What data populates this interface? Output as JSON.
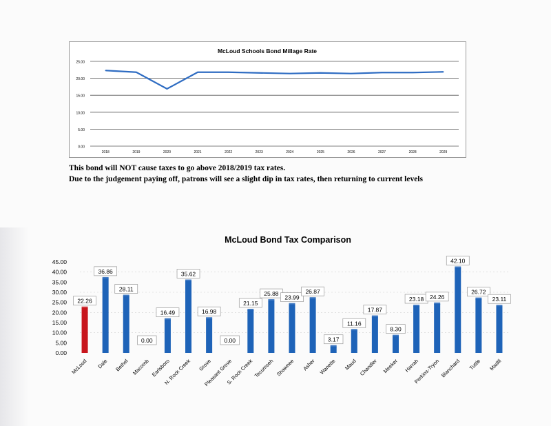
{
  "charts": [
    {
      "title": "McLoud Schools Bond Millage Rate",
      "chart_data": {
        "type": "line",
        "title": "McLoud Schools Bond Millage Rate",
        "x": [
          "2018",
          "2019",
          "2020",
          "2021",
          "2022",
          "2023",
          "2024",
          "2025",
          "2026",
          "2027",
          "2028",
          "2029"
        ],
        "series": [
          {
            "values": [
              22.3,
              21.8,
              16.9,
              21.8,
              21.8,
              21.6,
              21.4,
              21.6,
              21.4,
              21.7,
              21.7,
              21.9
            ]
          }
        ],
        "y_ticks": [
          "0.00",
          "5.00",
          "10.00",
          "15.00",
          "20.00",
          "25.00"
        ],
        "ylim": [
          0,
          25
        ],
        "grid": true,
        "color": "#2e6cc2"
      }
    },
    {
      "title": "McLoud Bond Tax Comparison",
      "chart_data": {
        "type": "bar",
        "title": "McLoud Bond Tax Comparison",
        "categories": [
          "McLoud",
          "Dale",
          "Bethel",
          "Macomb",
          "Earlsboro",
          "N. Rock Creek",
          "Grove",
          "Pleasant Grove",
          "S. Rock Creek",
          "Tecumseh",
          "Shawnee",
          "Asher",
          "Wanette",
          "Maud",
          "Chandler",
          "Meeker",
          "Harrah",
          "Perkins-Tryon",
          "Blanchard",
          "Tuttle",
          "Madill"
        ],
        "values": [
          22.26,
          36.86,
          28.11,
          0.0,
          16.49,
          35.62,
          16.98,
          0.0,
          21.15,
          25.88,
          23.99,
          26.87,
          3.17,
          11.16,
          17.87,
          8.3,
          23.18,
          24.26,
          42.1,
          26.72,
          23.11
        ],
        "data_labels": [
          "22.26",
          "36.86",
          "28.11",
          "0.00",
          "16.49",
          "35.62",
          "16.98",
          "0.00",
          "21.15",
          "25.88",
          "23.99",
          "26.87",
          "3.17",
          "11.16",
          "17.87",
          "8.30",
          "23.18",
          "24.26",
          "42.10",
          "26.72",
          "23.11"
        ],
        "y_ticks": [
          "0.00",
          "5.00",
          "10.00",
          "15.00",
          "20.00",
          "25.00",
          "30.00",
          "35.00",
          "40.00",
          "45.00"
        ],
        "ylim": [
          0,
          45
        ],
        "colors": {
          "highlight": "#c8161d",
          "bar": "#1e63b8"
        },
        "highlight_index": 0
      }
    }
  ],
  "caption": {
    "line1": "This bond will NOT cause taxes to go above 2018/2019 tax rates.",
    "line2": "Due to the judgement paying off, patrons will see a slight dip in tax rates, then returning to current levels"
  }
}
